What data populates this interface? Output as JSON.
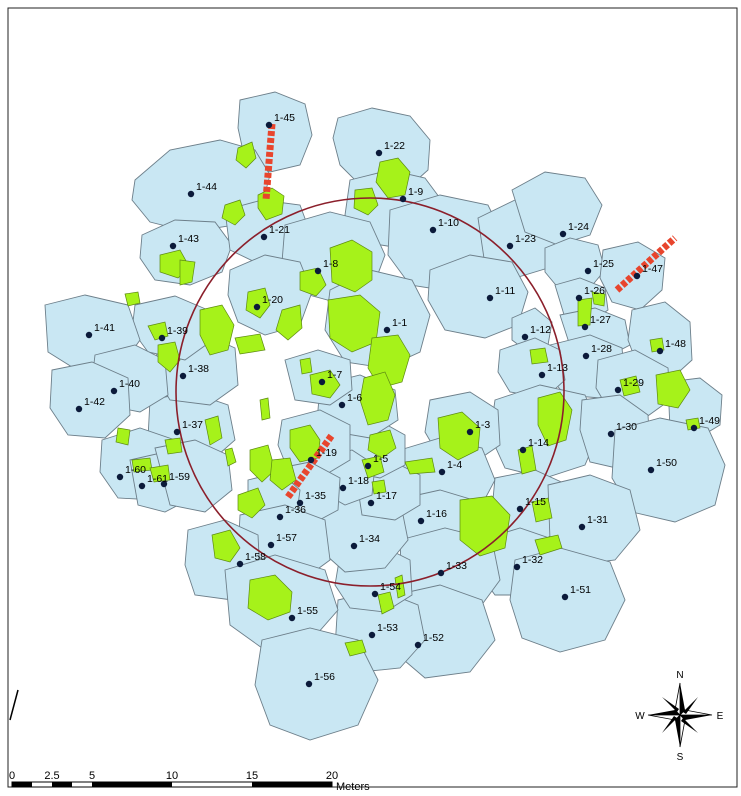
{
  "map": {
    "scale_bar": {
      "ticks": [
        "0",
        "2.5",
        "5",
        "10",
        "15",
        "20"
      ],
      "unit": "Meters"
    },
    "north_arrow": {
      "n": "N",
      "s": "S",
      "e": "E",
      "w": "W"
    },
    "colors": {
      "crown": "#c9e7f3",
      "canopy_gap": "#a6f21a",
      "transect": "#e8452d",
      "plot_circle": "#8b1f2b",
      "tree_point": "#0b1a3a"
    },
    "points": [
      {
        "id": "1-1"
      },
      {
        "id": "1-3"
      },
      {
        "id": "1-4"
      },
      {
        "id": "1-5"
      },
      {
        "id": "1-6"
      },
      {
        "id": "1-7"
      },
      {
        "id": "1-8"
      },
      {
        "id": "1-9"
      },
      {
        "id": "1-10"
      },
      {
        "id": "1-11"
      },
      {
        "id": "1-12"
      },
      {
        "id": "1-13"
      },
      {
        "id": "1-14"
      },
      {
        "id": "1-15"
      },
      {
        "id": "1-16"
      },
      {
        "id": "1-17"
      },
      {
        "id": "1-18"
      },
      {
        "id": "1-19"
      },
      {
        "id": "1-20"
      },
      {
        "id": "1-21"
      },
      {
        "id": "1-22"
      },
      {
        "id": "1-23"
      },
      {
        "id": "1-24"
      },
      {
        "id": "1-25"
      },
      {
        "id": "1-26"
      },
      {
        "id": "1-27"
      },
      {
        "id": "1-28"
      },
      {
        "id": "1-29"
      },
      {
        "id": "1-30"
      },
      {
        "id": "1-31"
      },
      {
        "id": "1-32"
      },
      {
        "id": "1-33"
      },
      {
        "id": "1-34"
      },
      {
        "id": "1-35"
      },
      {
        "id": "1-36"
      },
      {
        "id": "1-37"
      },
      {
        "id": "1-38"
      },
      {
        "id": "1-39"
      },
      {
        "id": "1-40"
      },
      {
        "id": "1-41"
      },
      {
        "id": "1-42"
      },
      {
        "id": "1-43"
      },
      {
        "id": "1-44"
      },
      {
        "id": "1-45"
      },
      {
        "id": "1-47"
      },
      {
        "id": "1-48"
      },
      {
        "id": "1-49"
      },
      {
        "id": "1-50"
      },
      {
        "id": "1-51"
      },
      {
        "id": "1-52"
      },
      {
        "id": "1-53"
      },
      {
        "id": "1-54"
      },
      {
        "id": "1-55"
      },
      {
        "id": "1-56"
      },
      {
        "id": "1-57"
      },
      {
        "id": "1-58"
      },
      {
        "id": "1-59"
      },
      {
        "id": "1-60"
      },
      {
        "id": "1-61"
      }
    ]
  }
}
